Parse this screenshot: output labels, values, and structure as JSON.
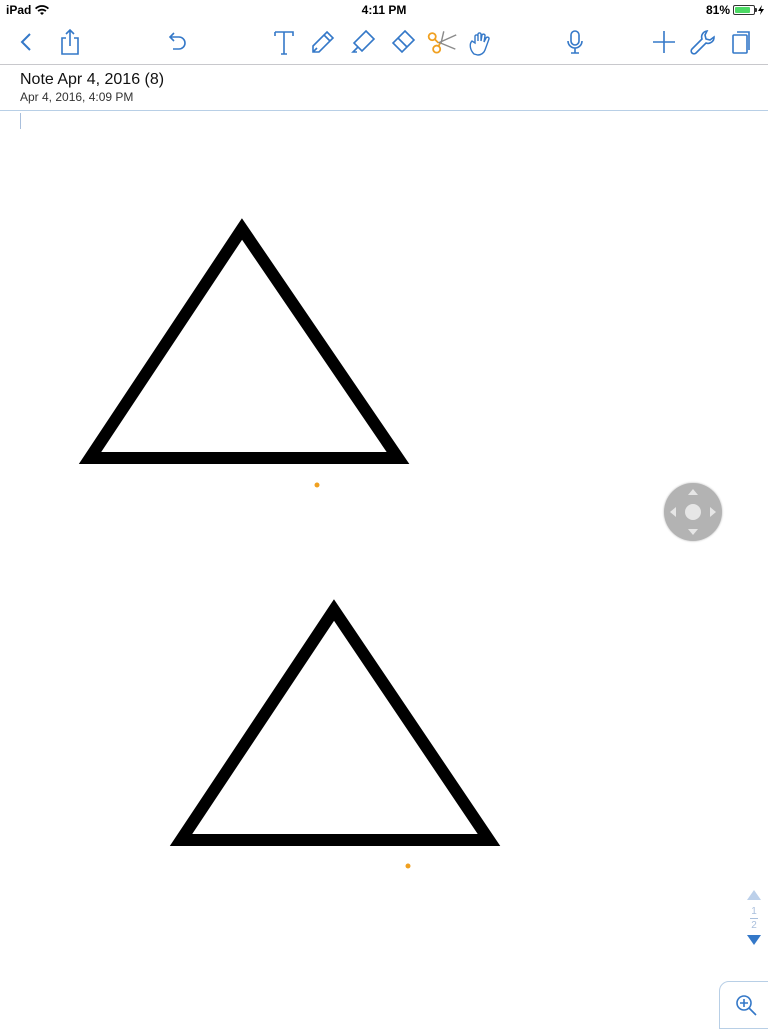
{
  "status_bar": {
    "device": "iPad",
    "time": "4:11 PM",
    "battery": "81%",
    "battery_level": 0.81
  },
  "toolbar": {
    "accent_color": "#3478c8",
    "scissors_color": "#f0a020",
    "buttons": [
      {
        "name": "back",
        "icon": "chevron-left-icon"
      },
      {
        "name": "share",
        "icon": "share-icon"
      },
      {
        "name": "undo",
        "icon": "undo-icon"
      },
      {
        "name": "text-tool",
        "icon": "text-icon"
      },
      {
        "name": "pen-tool",
        "icon": "pen-icon"
      },
      {
        "name": "highlighter-tool",
        "icon": "highlighter-icon"
      },
      {
        "name": "eraser-tool",
        "icon": "eraser-icon"
      },
      {
        "name": "scissors-tool",
        "icon": "scissors-icon",
        "active": true
      },
      {
        "name": "hand-tool",
        "icon": "hand-icon"
      },
      {
        "name": "record-audio",
        "icon": "microphone-icon"
      },
      {
        "name": "add",
        "icon": "plus-icon"
      },
      {
        "name": "settings",
        "icon": "wrench-icon"
      },
      {
        "name": "pages",
        "icon": "pages-icon"
      }
    ]
  },
  "note": {
    "title": "Note Apr 4, 2016 (8)",
    "date": "Apr 4, 2016, 4:09 PM"
  },
  "pager": {
    "current": "1",
    "total": "2"
  },
  "colors": {
    "stroke": "#000000",
    "marker_dot": "#f0a020",
    "joystick": "#b3b3b3"
  }
}
